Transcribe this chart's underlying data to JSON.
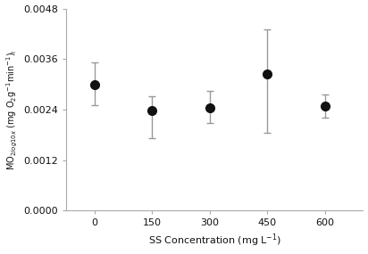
{
  "x": [
    0,
    150,
    300,
    450,
    600
  ],
  "y": [
    0.003,
    0.00238,
    0.00245,
    0.00325,
    0.00248
  ],
  "yerr_upper": [
    0.00052,
    0.00033,
    0.0004,
    0.00105,
    0.00028
  ],
  "yerr_lower": [
    0.0005,
    0.00065,
    0.00037,
    0.0014,
    0.00028
  ],
  "xlabel": "SS Concentration (mg L$^{-1}$)",
  "xlim": [
    -75,
    700
  ],
  "ylim": [
    0.0,
    0.0048
  ],
  "yticks": [
    0.0,
    0.0012,
    0.0024,
    0.0036,
    0.0048
  ],
  "xticks": [
    0,
    150,
    300,
    450,
    600
  ],
  "marker_color": "#111111",
  "marker_size": 7,
  "capsize": 3,
  "ecolor": "#999999",
  "elinewidth": 1.0,
  "background_color": "#ffffff",
  "tick_labelsize": 8,
  "xlabel_fontsize": 8,
  "ylabel_fontsize": 7
}
